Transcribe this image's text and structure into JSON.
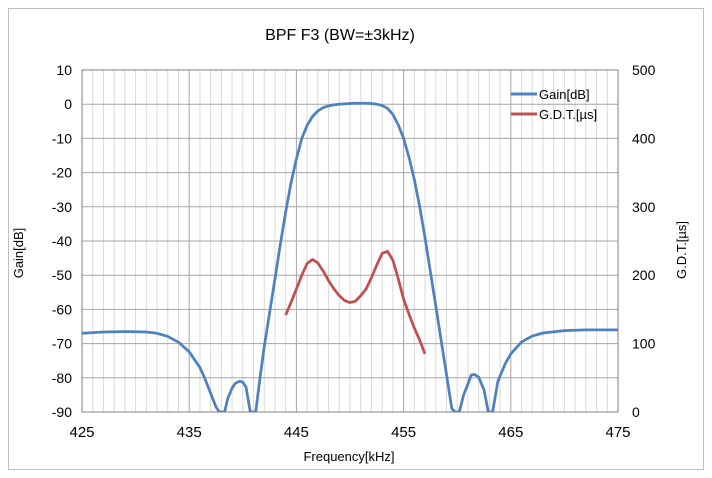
{
  "chart_data": {
    "type": "line",
    "title": "BPF F3 (BW=±3kHz)",
    "xlabel": "Frequency[kHz]",
    "ylabel": "Gain[dB]",
    "y2label": "G.D.T.[µs]",
    "xlim": [
      425,
      475
    ],
    "ylim": [
      -90,
      10
    ],
    "y2lim": [
      0,
      500
    ],
    "x_ticks": [
      425,
      435,
      445,
      455,
      465,
      475
    ],
    "y_ticks": [
      10,
      0,
      -10,
      -20,
      -30,
      -40,
      -50,
      -60,
      -70,
      -80,
      -90
    ],
    "y2_ticks": [
      500,
      400,
      300,
      200,
      100,
      0
    ],
    "grid": true,
    "legend_position": "top-right",
    "series": [
      {
        "name": "Gain[dB]",
        "axis": "left",
        "color": "#4f81bd",
        "x": [
          425,
          427,
          429,
          431,
          432,
          433,
          434,
          435,
          436,
          436.5,
          437,
          437.5,
          437.8,
          438.3,
          438.6,
          439,
          439.3,
          439.7,
          440,
          440.3,
          440.7,
          441.2,
          441.6,
          442,
          442.5,
          443,
          443.5,
          444,
          444.5,
          445,
          445.5,
          446,
          446.5,
          447,
          447.5,
          448,
          448.5,
          449,
          449.5,
          450,
          450.5,
          451,
          451.5,
          452,
          452.5,
          453,
          453.5,
          454,
          454.5,
          455,
          455.5,
          456,
          456.5,
          457,
          457.5,
          458,
          458.5,
          459,
          459.5,
          459.8,
          460.2,
          460.6,
          461,
          461.3,
          461.6,
          462,
          462.5,
          462.9,
          463.3,
          463.8,
          464.5,
          465,
          466,
          467,
          468,
          470,
          472,
          475
        ],
        "y": [
          -67,
          -66.6,
          -66.5,
          -66.6,
          -67,
          -67.9,
          -69.6,
          -72.4,
          -77,
          -80.5,
          -84.5,
          -88.5,
          -90,
          -90,
          -86,
          -83,
          -81.6,
          -81,
          -81.3,
          -82.7,
          -90,
          -90,
          -80,
          -71,
          -61,
          -51,
          -41,
          -31.5,
          -23,
          -16,
          -10,
          -6.2,
          -3.6,
          -2,
          -1,
          -0.5,
          -0.2,
          0,
          0.1,
          0.2,
          0.3,
          0.3,
          0.3,
          0.2,
          0,
          -0.4,
          -1.2,
          -3,
          -6,
          -10,
          -15.5,
          -22,
          -30,
          -39,
          -49,
          -59,
          -69,
          -79,
          -89,
          -90,
          -90,
          -85,
          -81.8,
          -79.2,
          -79,
          -79.8,
          -83.5,
          -90,
          -90,
          -81,
          -75.8,
          -73,
          -69.5,
          -67.8,
          -66.9,
          -66.2,
          -66,
          -66
        ]
      },
      {
        "name": "G.D.T.[µs]",
        "axis": "right",
        "color": "#c0504d",
        "x": [
          444,
          444.5,
          445,
          445.5,
          446,
          446.5,
          447,
          447.5,
          448,
          448.5,
          449,
          449.5,
          450,
          450.5,
          451,
          451.5,
          452,
          452.5,
          453,
          453.5,
          454,
          454.5,
          455,
          455.5,
          456,
          456.5,
          457
        ],
        "y": [
          142,
          160,
          180,
          200,
          217,
          223,
          218,
          206,
          192,
          180,
          170,
          163,
          160,
          162,
          170,
          180,
          196,
          215,
          232,
          235,
          222,
          195,
          165,
          143,
          123,
          105,
          85
        ]
      }
    ]
  }
}
